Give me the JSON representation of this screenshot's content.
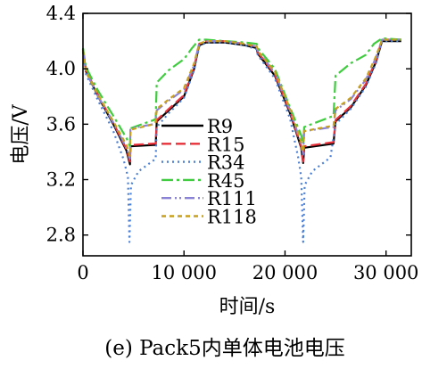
{
  "chart_data": {
    "type": "line",
    "title": "",
    "caption": "(e) Pack5内单体电池电压",
    "xlabel": "时间/s",
    "ylabel": "电压/V",
    "xlim": [
      0,
      32500
    ],
    "ylim": [
      2.65,
      4.4
    ],
    "x_ticks": [
      {
        "value": 0,
        "label": "0"
      },
      {
        "value": 10000,
        "label": "10 000"
      },
      {
        "value": 20000,
        "label": "20 000"
      },
      {
        "value": 30000,
        "label": "30 000"
      }
    ],
    "y_ticks": [
      {
        "value": 2.8,
        "label": "2.8"
      },
      {
        "value": 3.2,
        "label": "3.2"
      },
      {
        "value": 3.6,
        "label": "3.6"
      },
      {
        "value": 4.0,
        "label": "4.0"
      },
      {
        "value": 4.4,
        "label": "4.4"
      }
    ],
    "grid": false,
    "legend_position": "center",
    "series": [
      {
        "name": "R9",
        "color": "#000000",
        "dash": "solid",
        "points": [
          [
            0,
            4.14
          ],
          [
            300,
            3.98
          ],
          [
            1500,
            3.8
          ],
          [
            3000,
            3.6
          ],
          [
            4300,
            3.41
          ],
          [
            4650,
            3.31
          ],
          [
            4700,
            3.44
          ],
          [
            7000,
            3.45
          ],
          [
            7200,
            3.45
          ],
          [
            7300,
            3.62
          ],
          [
            8500,
            3.7
          ],
          [
            10000,
            3.8
          ],
          [
            11000,
            4.0
          ],
          [
            11500,
            4.17
          ],
          [
            12200,
            4.19
          ],
          [
            14000,
            4.19
          ],
          [
            16000,
            4.17
          ],
          [
            17200,
            4.15
          ],
          [
            17300,
            4.11
          ],
          [
            19000,
            3.95
          ],
          [
            20500,
            3.68
          ],
          [
            21600,
            3.43
          ],
          [
            21800,
            3.32
          ],
          [
            21900,
            3.43
          ],
          [
            24800,
            3.46
          ],
          [
            25000,
            3.62
          ],
          [
            26500,
            3.72
          ],
          [
            28000,
            3.88
          ],
          [
            29000,
            4.05
          ],
          [
            29600,
            4.2
          ],
          [
            31500,
            4.2
          ]
        ]
      },
      {
        "name": "R15",
        "color": "#e8303a",
        "dash": "11,5",
        "points": [
          [
            0,
            4.14
          ],
          [
            300,
            3.99
          ],
          [
            1500,
            3.81
          ],
          [
            3000,
            3.61
          ],
          [
            4300,
            3.42
          ],
          [
            4650,
            3.33
          ],
          [
            4700,
            3.45
          ],
          [
            7000,
            3.46
          ],
          [
            7200,
            3.46
          ],
          [
            7300,
            3.63
          ],
          [
            8500,
            3.71
          ],
          [
            10000,
            3.81
          ],
          [
            11000,
            4.01
          ],
          [
            11500,
            4.18
          ],
          [
            12200,
            4.2
          ],
          [
            14000,
            4.2
          ],
          [
            16000,
            4.18
          ],
          [
            17200,
            4.16
          ],
          [
            17300,
            4.12
          ],
          [
            19000,
            3.96
          ],
          [
            20500,
            3.69
          ],
          [
            21600,
            3.44
          ],
          [
            21800,
            3.33
          ],
          [
            21900,
            3.44
          ],
          [
            24800,
            3.47
          ],
          [
            25000,
            3.63
          ],
          [
            26500,
            3.73
          ],
          [
            28000,
            3.89
          ],
          [
            29000,
            4.06
          ],
          [
            29600,
            4.21
          ],
          [
            31500,
            4.21
          ]
        ]
      },
      {
        "name": "R34",
        "color": "#4a7fd6",
        "dash": "2,4",
        "points": [
          [
            0,
            4.12
          ],
          [
            300,
            3.96
          ],
          [
            1500,
            3.77
          ],
          [
            3000,
            3.55
          ],
          [
            4000,
            3.35
          ],
          [
            4450,
            3.22
          ],
          [
            4600,
            2.75
          ],
          [
            4750,
            3.16
          ],
          [
            5500,
            3.26
          ],
          [
            7000,
            3.34
          ],
          [
            7200,
            3.35
          ],
          [
            7300,
            3.58
          ],
          [
            8500,
            3.68
          ],
          [
            10000,
            3.79
          ],
          [
            11000,
            3.99
          ],
          [
            11500,
            4.16
          ],
          [
            12200,
            4.19
          ],
          [
            14000,
            4.19
          ],
          [
            16000,
            4.17
          ],
          [
            17200,
            4.14
          ],
          [
            17300,
            4.1
          ],
          [
            19000,
            3.93
          ],
          [
            20500,
            3.64
          ],
          [
            21300,
            3.36
          ],
          [
            21600,
            3.22
          ],
          [
            21800,
            2.75
          ],
          [
            21950,
            3.16
          ],
          [
            22700,
            3.26
          ],
          [
            24500,
            3.36
          ],
          [
            25000,
            3.6
          ],
          [
            26500,
            3.71
          ],
          [
            28000,
            3.87
          ],
          [
            29000,
            4.04
          ],
          [
            29600,
            4.2
          ],
          [
            31500,
            4.2
          ]
        ]
      },
      {
        "name": "R45",
        "color": "#3fcc3f",
        "dash": "13,4,3,4",
        "points": [
          [
            0,
            4.15
          ],
          [
            300,
            4.01
          ],
          [
            1500,
            3.84
          ],
          [
            3000,
            3.66
          ],
          [
            4300,
            3.5
          ],
          [
            4650,
            3.44
          ],
          [
            4700,
            3.57
          ],
          [
            7000,
            3.63
          ],
          [
            7200,
            3.64
          ],
          [
            7300,
            3.9
          ],
          [
            8500,
            3.99
          ],
          [
            10000,
            4.07
          ],
          [
            10800,
            4.15
          ],
          [
            11500,
            4.21
          ],
          [
            12200,
            4.21
          ],
          [
            14000,
            4.2
          ],
          [
            16000,
            4.19
          ],
          [
            17200,
            4.18
          ],
          [
            17300,
            4.15
          ],
          [
            19000,
            4.0
          ],
          [
            20500,
            3.72
          ],
          [
            21600,
            3.52
          ],
          [
            21800,
            3.46
          ],
          [
            21900,
            3.58
          ],
          [
            24800,
            3.66
          ],
          [
            25000,
            3.95
          ],
          [
            26500,
            4.04
          ],
          [
            28000,
            4.1
          ],
          [
            28800,
            4.18
          ],
          [
            29600,
            4.22
          ],
          [
            31500,
            4.21
          ]
        ]
      },
      {
        "name": "R111",
        "color": "#8a82d6",
        "dash": "11,4,2,3,2,4",
        "points": [
          [
            0,
            4.13
          ],
          [
            300,
            3.98
          ],
          [
            1500,
            3.8
          ],
          [
            3000,
            3.61
          ],
          [
            4300,
            3.43
          ],
          [
            4650,
            3.35
          ],
          [
            4700,
            3.57
          ],
          [
            7000,
            3.6
          ],
          [
            7200,
            3.61
          ],
          [
            7300,
            3.7
          ],
          [
            8500,
            3.77
          ],
          [
            10000,
            3.85
          ],
          [
            11000,
            4.03
          ],
          [
            11500,
            4.18
          ],
          [
            12200,
            4.2
          ],
          [
            14000,
            4.2
          ],
          [
            16000,
            4.18
          ],
          [
            17200,
            4.16
          ],
          [
            17300,
            4.13
          ],
          [
            19000,
            3.97
          ],
          [
            20500,
            3.7
          ],
          [
            21600,
            3.46
          ],
          [
            21800,
            3.38
          ],
          [
            21900,
            3.55
          ],
          [
            24800,
            3.58
          ],
          [
            25000,
            3.7
          ],
          [
            26500,
            3.78
          ],
          [
            28000,
            3.92
          ],
          [
            29000,
            4.08
          ],
          [
            29600,
            4.21
          ],
          [
            31500,
            4.21
          ]
        ]
      },
      {
        "name": "R118",
        "color": "#c8a020",
        "dash": "5,4",
        "points": [
          [
            0,
            4.13
          ],
          [
            300,
            3.98
          ],
          [
            1500,
            3.81
          ],
          [
            3000,
            3.62
          ],
          [
            4300,
            3.45
          ],
          [
            4650,
            3.37
          ],
          [
            4700,
            3.56
          ],
          [
            7000,
            3.6
          ],
          [
            7200,
            3.62
          ],
          [
            7300,
            3.71
          ],
          [
            8500,
            3.78
          ],
          [
            10000,
            3.86
          ],
          [
            11000,
            4.04
          ],
          [
            11500,
            4.18
          ],
          [
            12200,
            4.2
          ],
          [
            14000,
            4.2
          ],
          [
            16000,
            4.18
          ],
          [
            17200,
            4.16
          ],
          [
            17300,
            4.13
          ],
          [
            19000,
            3.98
          ],
          [
            20500,
            3.71
          ],
          [
            21600,
            3.47
          ],
          [
            21800,
            3.4
          ],
          [
            21900,
            3.55
          ],
          [
            24800,
            3.59
          ],
          [
            25000,
            3.71
          ],
          [
            26500,
            3.79
          ],
          [
            28000,
            3.93
          ],
          [
            29000,
            4.09
          ],
          [
            29600,
            4.21
          ],
          [
            31500,
            4.21
          ]
        ]
      }
    ]
  }
}
